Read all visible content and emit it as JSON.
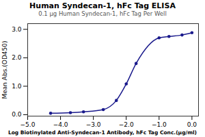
{
  "chart_data": {
    "type": "line",
    "title": "Human Syndecan-1, hFc Tag ELISA",
    "subtitle": "0.1 μg Human Syndecan-1, hFc Tag Per Well",
    "xlabel": "Log Biotinylated Anti-Syndecan-1 Antibody, hFc Tag Conc.(μg/ml)",
    "ylabel": "Mean Abs.(OD450)",
    "x": [
      -4.301,
      -3.699,
      -3.301,
      -2.699,
      -2.301,
      -2.0,
      -1.699,
      -1.0,
      -0.699,
      -0.301,
      0.0
    ],
    "values": [
      0.05,
      0.07,
      0.1,
      0.18,
      0.5,
      1.08,
      1.8,
      2.7,
      2.75,
      2.8,
      2.88
    ],
    "color": "#1a1a8c",
    "marker": "circle",
    "xlim": [
      -5,
      0.2
    ],
    "ylim": [
      -0.05,
      3.2
    ],
    "xticks": [
      -5,
      -4,
      -3,
      -2,
      -1,
      0
    ],
    "yticks": [
      0,
      1,
      2,
      3
    ],
    "grid": false
  }
}
